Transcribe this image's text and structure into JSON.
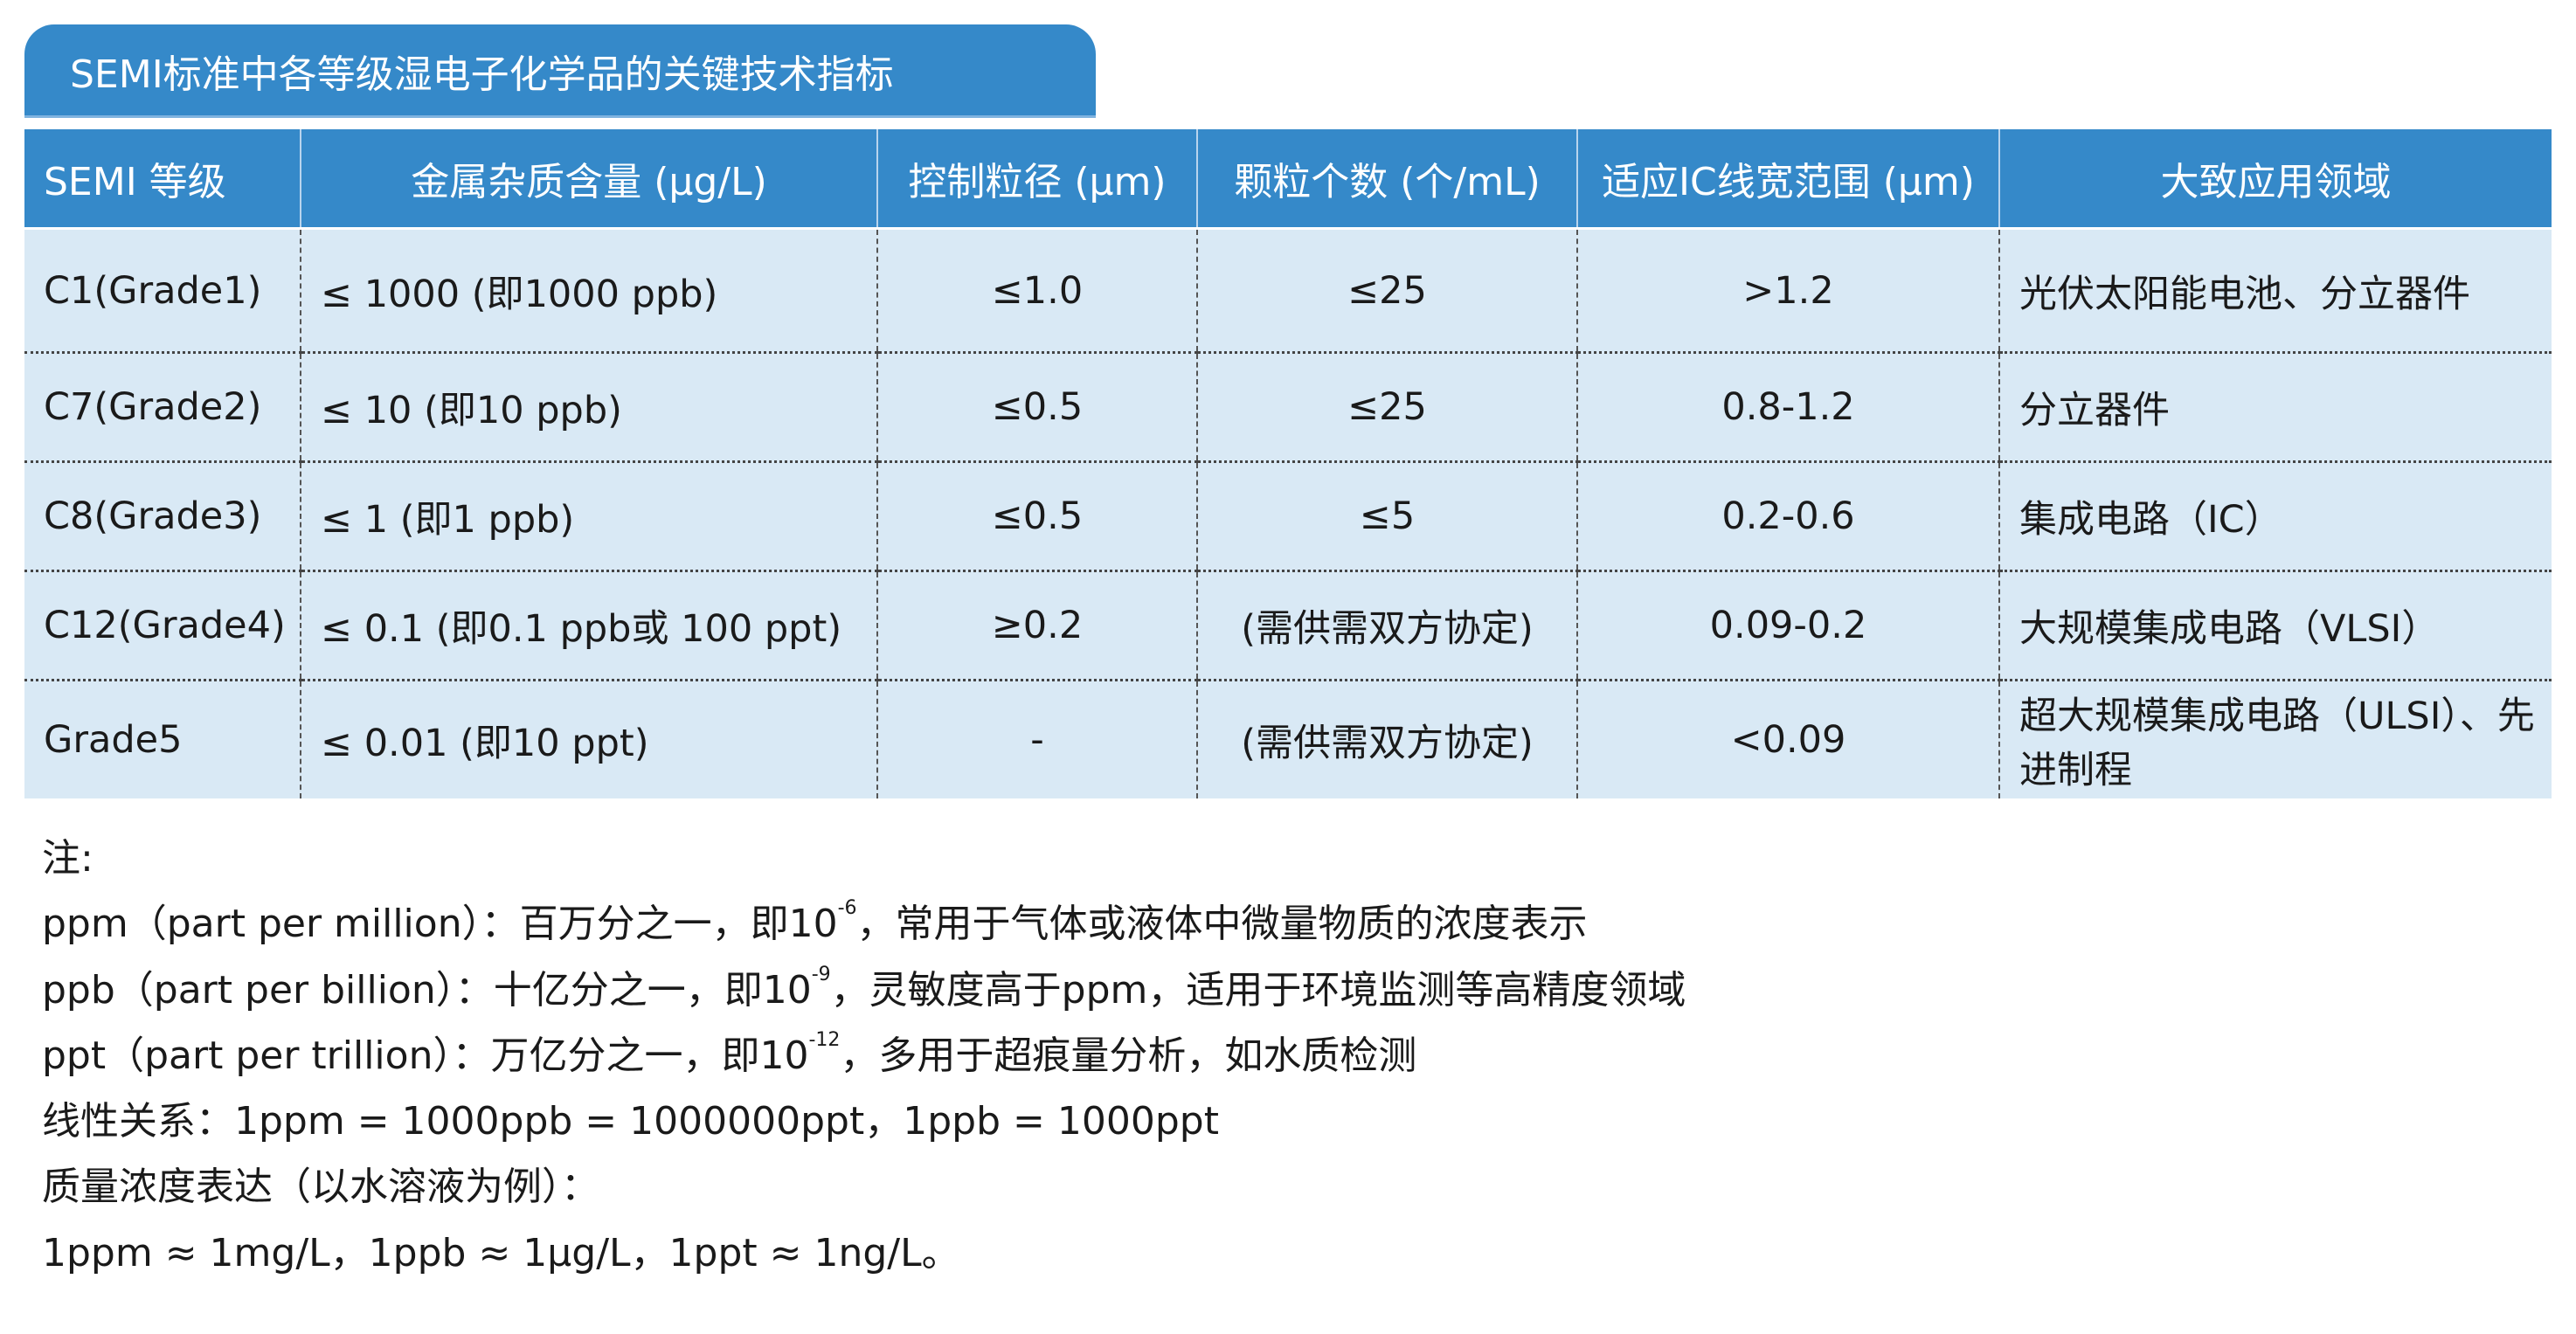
{
  "title": "SEMI标准中各等级湿电子化学品的关键技术指标",
  "colors": {
    "header": "#3589c9",
    "row": "#d9e9f5"
  },
  "table": {
    "headers": [
      "SEMI 等级",
      "金属杂质含量 (μg/L)",
      "控制粒径 (μm)",
      "颗粒个数 (个/mL)",
      "适应IC线宽范围 (μm)",
      "大致应用领域"
    ],
    "rows": [
      [
        "C1(Grade1)",
        "≤ 1000 (即1000 ppb)",
        "≤1.0",
        "≤25",
        ">1.2",
        "光伏太阳能电池、分立器件"
      ],
      [
        "C7(Grade2)",
        "≤ 10 (即10 ppb)",
        "≤0.5",
        "≤25",
        "0.8-1.2",
        "分立器件"
      ],
      [
        "C8(Grade3)",
        "≤ 1 (即1 ppb)",
        "≤0.5",
        "≤5",
        "0.2-0.6",
        "集成电路（IC）"
      ],
      [
        "C12(Grade4)",
        "≤ 0.1 (即0.1 ppb或 100 ppt)",
        "≥0.2",
        "(需供需双方协定)",
        "0.09-0.2",
        "大规模集成电路（VLSI）"
      ],
      [
        "Grade5",
        "≤ 0.01 (即10 ppt)",
        "-",
        "(需供需双方协定)",
        "<0.09",
        "超大规模集成电路（ULSI）、先进制程"
      ]
    ]
  },
  "notes": {
    "heading": "注:",
    "ppm_a": "ppm（part per million）：百万分之一，即10",
    "ppm_exp": "-6",
    "ppm_b": "，常用于气体或液体中微量物质的浓度表示",
    "ppb_a": "ppb（part per billion）：十亿分之一，即10",
    "ppb_exp": "-9",
    "ppb_b": "，灵敏度高于ppm，适用于环境监测等高精度领域",
    "ppt_a": "ppt（part per trillion）：万亿分之一，即10",
    "ppt_exp": "-12",
    "ppt_b": "，多用于超痕量分析，如水质检测",
    "linear": "线性关系：1ppm = 1000ppb = 1000000ppt，1ppb = 1000ppt",
    "mass_heading": "质量浓度表达（以水溶液为例）：",
    "mass": "1ppm ≈ 1mg/L，1ppb ≈ 1μg/L，1ppt ≈ 1ng/L。"
  }
}
